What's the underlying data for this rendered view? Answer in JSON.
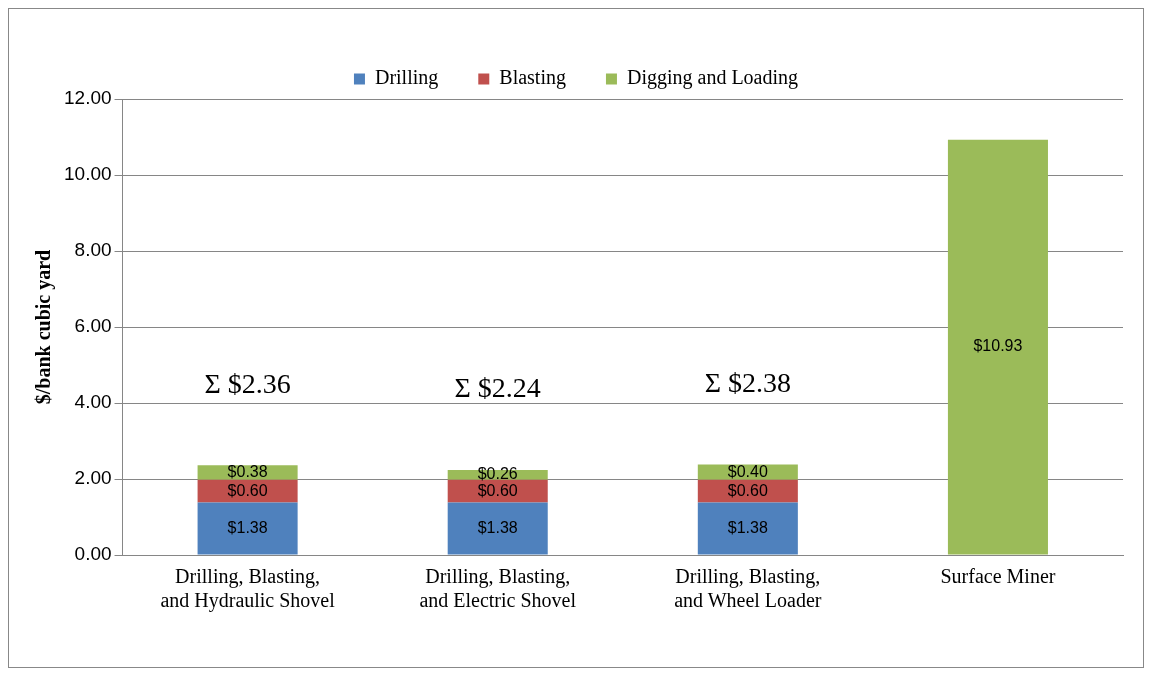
{
  "chart_data": {
    "type": "bar",
    "stacked": true,
    "ylabel": "$/bank cubic yard",
    "categories": [
      "Drilling, Blasting, and Hydraulic Shovel",
      "Drilling, Blasting, and Electric Shovel",
      "Drilling, Blasting, and Wheel Loader",
      "Surface Miner"
    ],
    "series": [
      {
        "name": "Drilling",
        "color": "#4f81bd",
        "values": [
          1.38,
          1.38,
          1.38,
          null
        ],
        "value_labels": [
          "$1.38",
          "$1.38",
          "$1.38",
          null
        ]
      },
      {
        "name": "Blasting",
        "color": "#c0504d",
        "values": [
          0.6,
          0.6,
          0.6,
          null
        ],
        "value_labels": [
          "$0.60",
          "$0.60",
          "$0.60",
          null
        ]
      },
      {
        "name": "Digging and Loading",
        "color": "#9bbb59",
        "values": [
          0.38,
          0.26,
          0.4,
          10.93
        ],
        "value_labels": [
          "$0.38",
          "$0.26",
          "$0.40",
          "$10.93"
        ]
      }
    ],
    "totals": [
      "Σ $2.36",
      "Σ $2.24",
      "Σ $2.38",
      null
    ],
    "ylim": [
      0,
      12
    ],
    "yticks": [
      {
        "value": 0,
        "label": "0.00"
      },
      {
        "value": 2,
        "label": "2.00"
      },
      {
        "value": 4,
        "label": "4.00"
      },
      {
        "value": 6,
        "label": "6.00"
      },
      {
        "value": 8,
        "label": "8.00"
      },
      {
        "value": 10,
        "label": "10.00"
      },
      {
        "value": 12,
        "label": "12.00"
      }
    ],
    "grid": "y",
    "legend": "top"
  }
}
